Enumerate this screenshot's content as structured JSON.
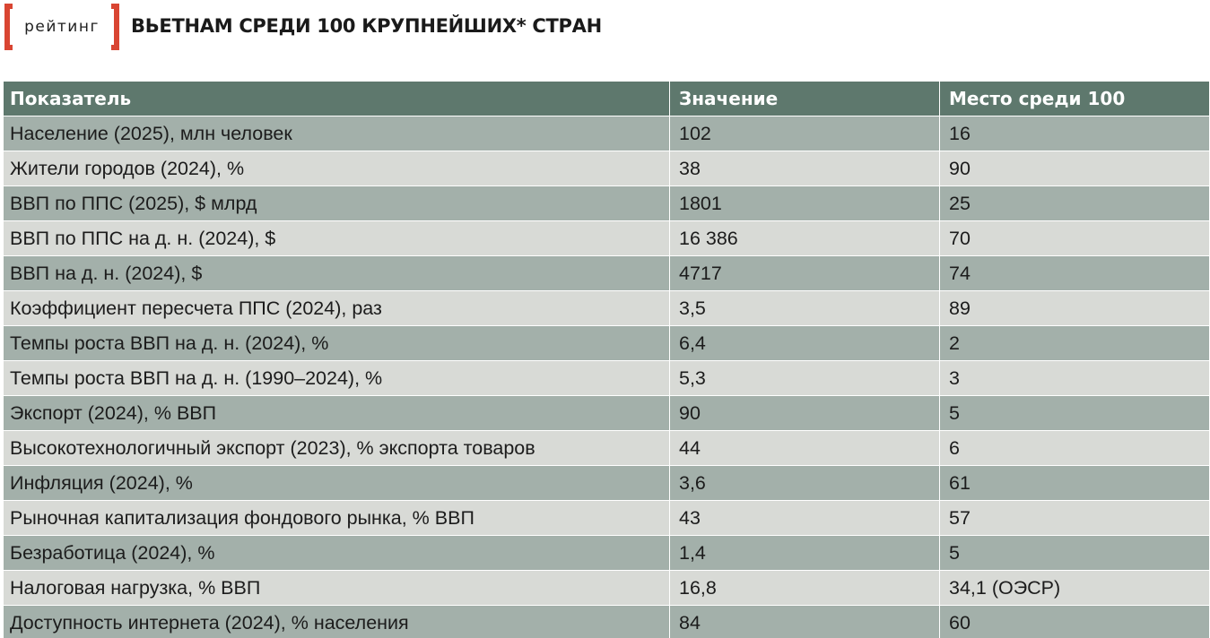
{
  "header": {
    "logo_text": "рейтинг",
    "title": "ВЬЕТНАМ СРЕДИ 100 КРУПНЕЙШИХ* СТРАН"
  },
  "colors": {
    "bracket": "#d94532",
    "header_row": "#5e786d",
    "row_odd": "#a3b0aa",
    "row_even": "#d8dad6"
  },
  "table": {
    "columns": [
      "Показатель",
      "Значение",
      "Место среди 100"
    ],
    "rows": [
      {
        "indicator": "Население (2025), млн человек",
        "value": "102",
        "rank": "16"
      },
      {
        "indicator": "Жители городов (2024), %",
        "value": "38",
        "rank": "90"
      },
      {
        "indicator": "ВВП по ППС (2025), $ млрд",
        "value": "1801",
        "rank": "25"
      },
      {
        "indicator": "ВВП по ППС на д. н. (2024), $",
        "value": "16 386",
        "rank": "70"
      },
      {
        "indicator": "ВВП на д. н. (2024), $",
        "value": "4717",
        "rank": "74"
      },
      {
        "indicator": "Коэффициент пересчета ППС (2024), раз",
        "value": "3,5",
        "rank": "89"
      },
      {
        "indicator": "Темпы роста ВВП на д. н. (2024), %",
        "value": "6,4",
        "rank": "2"
      },
      {
        "indicator": "Темпы роста ВВП на д. н. (1990–2024), %",
        "value": "5,3",
        "rank": "3"
      },
      {
        "indicator": "Экспорт (2024), % ВВП",
        "value": "90",
        "rank": "5"
      },
      {
        "indicator": "Высокотехнологичный экспорт (2023), % экспорта товаров",
        "value": "44",
        "rank": "6"
      },
      {
        "indicator": "Инфляция (2024), %",
        "value": "3,6",
        "rank": "61"
      },
      {
        "indicator": "Рыночная капитализация фондового рынка, % ВВП",
        "value": "43",
        "rank": "57"
      },
      {
        "indicator": "Безработица (2024), %",
        "value": "1,4",
        "rank": "5"
      },
      {
        "indicator": "Налоговая нагрузка, % ВВП",
        "value": "16,8",
        "rank": "34,1 (ОЭСР)"
      },
      {
        "indicator": "Доступность интернета (2024), % населения",
        "value": "84",
        "rank": "60"
      }
    ]
  }
}
